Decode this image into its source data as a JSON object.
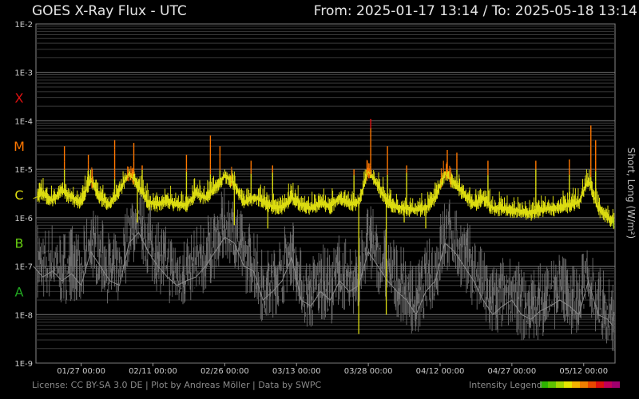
{
  "header": {
    "title_left": "GOES X-Ray Flux - UTC",
    "title_right": "From: 2025-01-17 13:14  /  To: 2025-05-18 13:14"
  },
  "footer": {
    "license": "License: CC BY-SA 3.0 DE | Plot by Andreas Möller | Data by SWPC",
    "legend_label": "Intensity Legend"
  },
  "colors": {
    "class_A": "#22aa22",
    "class_B": "#66cc11",
    "class_C": "#dddd11",
    "class_M": "#ff7700",
    "class_X": "#dd1111",
    "short_series": "#6f6f6f",
    "legend": [
      "#2db400",
      "#5ec400",
      "#a5d800",
      "#e6e600",
      "#f2b400",
      "#f08000",
      "#e84800",
      "#dd1010",
      "#c2005a",
      "#a0006e"
    ]
  },
  "chart_data": {
    "type": "line",
    "title": "GOES X-Ray Flux - UTC",
    "ylabel": "Short, Long (W/m²)",
    "yscale": "log",
    "ylim": [
      1e-09,
      0.01
    ],
    "xlim": [
      "2025-01-17 13:14",
      "2025-05-18 13:14"
    ],
    "y_tick_labels": [
      "1E-2",
      "1E-3",
      "1E-4",
      "1E-5",
      "1E-6",
      "1E-7",
      "1E-8",
      "1E-9"
    ],
    "flare_classes": [
      {
        "label": "X",
        "y": 0.0003
      },
      {
        "label": "M",
        "y": 3e-05
      },
      {
        "label": "C",
        "y": 3e-06
      },
      {
        "label": "B",
        "y": 3e-07
      },
      {
        "label": "A",
        "y": 3e-08
      }
    ],
    "x_ticks": [
      {
        "label": "01/27 00:00",
        "date": "2025-01-27 00:00"
      },
      {
        "label": "02/11 00:00",
        "date": "2025-02-11 00:00"
      },
      {
        "label": "02/26 00:00",
        "date": "2025-02-26 00:00"
      },
      {
        "label": "03/13 00:00",
        "date": "2025-03-13 00:00"
      },
      {
        "label": "03/28 00:00",
        "date": "2025-03-28 00:00"
      },
      {
        "label": "04/12 00:00",
        "date": "2025-04-12 00:00"
      },
      {
        "label": "04/27 00:00",
        "date": "2025-04-27 00:00"
      },
      {
        "label": "05/12 00:00",
        "date": "2025-05-12 00:00"
      }
    ],
    "series": [
      {
        "name": "Long",
        "x": [
          "2025-01-17",
          "2025-01-19",
          "2025-01-21",
          "2025-01-23",
          "2025-01-25",
          "2025-01-27",
          "2025-01-29",
          "2025-01-31",
          "2025-02-02",
          "2025-02-04",
          "2025-02-06",
          "2025-02-08",
          "2025-02-10",
          "2025-02-12",
          "2025-02-14",
          "2025-02-16",
          "2025-02-18",
          "2025-02-20",
          "2025-02-22",
          "2025-02-24",
          "2025-02-26",
          "2025-02-28",
          "2025-03-02",
          "2025-03-04",
          "2025-03-06",
          "2025-03-08",
          "2025-03-10",
          "2025-03-12",
          "2025-03-14",
          "2025-03-16",
          "2025-03-18",
          "2025-03-20",
          "2025-03-22",
          "2025-03-24",
          "2025-03-26",
          "2025-03-28",
          "2025-03-30",
          "2025-04-01",
          "2025-04-03",
          "2025-04-05",
          "2025-04-07",
          "2025-04-09",
          "2025-04-11",
          "2025-04-13",
          "2025-04-15",
          "2025-04-17",
          "2025-04-19",
          "2025-04-21",
          "2025-04-23",
          "2025-04-25",
          "2025-04-27",
          "2025-04-29",
          "2025-05-01",
          "2025-05-03",
          "2025-05-05",
          "2025-05-07",
          "2025-05-09",
          "2025-05-11",
          "2025-05-13",
          "2025-05-15",
          "2025-05-17",
          "2025-05-18"
        ],
        "y": [
          2.5e-06,
          3e-06,
          2.2e-06,
          3.5e-06,
          2.5e-06,
          2e-06,
          6e-06,
          2.5e-06,
          1.8e-06,
          3.5e-06,
          8e-06,
          4.5e-06,
          2e-06,
          1.8e-06,
          2.2e-06,
          1.8e-06,
          1.8e-06,
          3e-06,
          2.5e-06,
          4e-06,
          7e-06,
          5e-06,
          2e-06,
          2.5e-06,
          2.2e-06,
          1.6e-06,
          1.6e-06,
          2.5e-06,
          1.8e-06,
          1.5e-06,
          2e-06,
          1.6e-06,
          2.5e-06,
          1.8e-06,
          2e-06,
          9e-06,
          4.5e-06,
          2e-06,
          1.6e-06,
          1.5e-06,
          1.4e-06,
          1.5e-06,
          2.5e-06,
          8e-06,
          5e-06,
          3e-06,
          1.8e-06,
          2.5e-06,
          1.5e-06,
          1.5e-06,
          1.4e-06,
          1.3e-06,
          1.2e-06,
          1.4e-06,
          1.5e-06,
          1.5e-06,
          1.8e-06,
          2e-06,
          6e-06,
          1.5e-06,
          1e-06,
          8e-07
        ]
      },
      {
        "name": "Short",
        "x": [
          "2025-01-17",
          "2025-01-19",
          "2025-01-21",
          "2025-01-23",
          "2025-01-25",
          "2025-01-27",
          "2025-01-29",
          "2025-01-31",
          "2025-02-02",
          "2025-02-04",
          "2025-02-06",
          "2025-02-08",
          "2025-02-10",
          "2025-02-12",
          "2025-02-14",
          "2025-02-16",
          "2025-02-18",
          "2025-02-20",
          "2025-02-22",
          "2025-02-24",
          "2025-02-26",
          "2025-02-28",
          "2025-03-02",
          "2025-03-04",
          "2025-03-06",
          "2025-03-08",
          "2025-03-10",
          "2025-03-12",
          "2025-03-14",
          "2025-03-16",
          "2025-03-18",
          "2025-03-20",
          "2025-03-22",
          "2025-03-24",
          "2025-03-26",
          "2025-03-28",
          "2025-03-30",
          "2025-04-01",
          "2025-04-03",
          "2025-04-05",
          "2025-04-07",
          "2025-04-09",
          "2025-04-11",
          "2025-04-13",
          "2025-04-15",
          "2025-04-17",
          "2025-04-19",
          "2025-04-21",
          "2025-04-23",
          "2025-04-25",
          "2025-04-27",
          "2025-04-29",
          "2025-05-01",
          "2025-05-03",
          "2025-05-05",
          "2025-05-07",
          "2025-05-09",
          "2025-05-11",
          "2025-05-13",
          "2025-05-15",
          "2025-05-17",
          "2025-05-18"
        ],
        "y": [
          1e-07,
          6e-08,
          8e-08,
          5e-08,
          7e-08,
          4e-08,
          2e-07,
          1e-07,
          5e-08,
          4e-08,
          3e-07,
          5e-07,
          2e-07,
          1e-07,
          6e-08,
          4e-08,
          5e-08,
          6e-08,
          1e-07,
          2e-07,
          4e-07,
          3e-07,
          1e-07,
          8e-08,
          2e-08,
          3e-08,
          5e-08,
          1.5e-07,
          2e-08,
          1.5e-08,
          3e-08,
          2e-08,
          5e-08,
          3e-08,
          4e-08,
          2e-07,
          1e-07,
          5e-08,
          3e-08,
          2e-08,
          1e-08,
          3e-08,
          5e-08,
          3e-07,
          2e-07,
          1e-07,
          5e-08,
          2e-08,
          1e-08,
          1.5e-08,
          2e-08,
          1e-08,
          8e-09,
          1.2e-08,
          1.5e-08,
          2e-08,
          1.5e-08,
          1e-08,
          5e-08,
          1e-08,
          8e-09,
          6e-09
        ]
      }
    ],
    "peaks": [
      {
        "date": "2025-01-23 12:00",
        "y": 3e-05
      },
      {
        "date": "2025-01-28 12:00",
        "y": 2e-05
      },
      {
        "date": "2025-02-03 00:00",
        "y": 4e-05
      },
      {
        "date": "2025-02-07 00:00",
        "y": 3.5e-05
      },
      {
        "date": "2025-02-08 18:00",
        "y": 1.2e-05
      },
      {
        "date": "2025-02-18 00:00",
        "y": 2e-05
      },
      {
        "date": "2025-02-23 00:00",
        "y": 5e-05
      },
      {
        "date": "2025-02-25 00:00",
        "y": 3e-05
      },
      {
        "date": "2025-03-03 12:00",
        "y": 1.5e-05
      },
      {
        "date": "2025-03-08 00:00",
        "y": 1.2e-05
      },
      {
        "date": "2025-03-25 00:00",
        "y": 1e-05
      },
      {
        "date": "2025-03-28 12:00",
        "y": 0.00011
      },
      {
        "date": "2025-04-01 00:00",
        "y": 3e-05
      },
      {
        "date": "2025-04-05 00:00",
        "y": 1.2e-05
      },
      {
        "date": "2025-04-13 12:00",
        "y": 2.5e-05
      },
      {
        "date": "2025-04-15 12:00",
        "y": 2.2e-05
      },
      {
        "date": "2025-04-22 00:00",
        "y": 1.5e-05
      },
      {
        "date": "2025-05-02 00:00",
        "y": 1.5e-05
      },
      {
        "date": "2025-05-09 00:00",
        "y": 1.6e-05
      },
      {
        "date": "2025-05-13 12:00",
        "y": 8e-05
      },
      {
        "date": "2025-05-14 12:00",
        "y": 4e-05
      }
    ],
    "dips": [
      {
        "date": "2025-02-07 18:00",
        "y": 8e-07
      },
      {
        "date": "2025-02-28 00:00",
        "y": 7e-07
      },
      {
        "date": "2025-03-07 00:00",
        "y": 6e-07
      },
      {
        "date": "2025-03-26 00:00",
        "y": 4e-09
      },
      {
        "date": "2025-03-31 18:00",
        "y": 1e-08
      },
      {
        "date": "2025-04-04 12:00",
        "y": 8e-07
      },
      {
        "date": "2025-04-09 00:00",
        "y": 6e-07
      }
    ]
  }
}
